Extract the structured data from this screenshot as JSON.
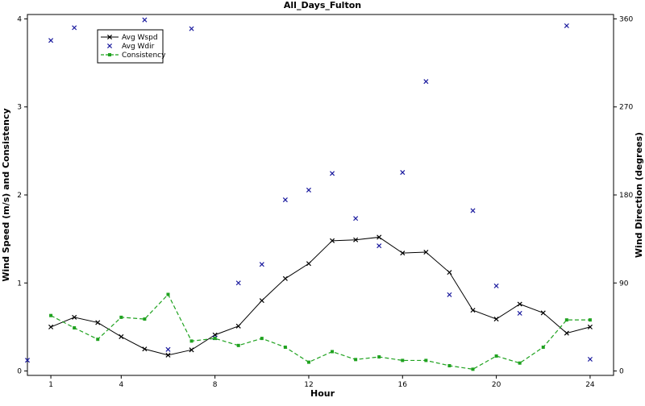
{
  "chart_data": {
    "type": "line",
    "title": "All_Days_Fulton",
    "xlabel": "Hour",
    "ylabel_left": "Wind Speed (m/s) and Consistency",
    "ylabel_right": "Wind Direction (degrees)",
    "x_ticks": [
      1,
      4,
      8,
      12,
      16,
      20,
      24
    ],
    "y_left_ticks": [
      0,
      1,
      2,
      3,
      4
    ],
    "y_right_ticks": [
      0,
      90,
      180,
      270,
      360
    ],
    "xlim": [
      0,
      25
    ],
    "ylim_left": [
      -0.05,
      4.05
    ],
    "ylim_right": [
      -4.5,
      364.5
    ],
    "legend_position": "top-left",
    "series": [
      {
        "name": "Avg Wspd",
        "axis": "left",
        "style": "solid-line-x-marker",
        "color": "#000000",
        "points": [
          [
            1,
            0.5
          ],
          [
            2,
            0.61
          ],
          [
            3,
            0.55
          ],
          [
            4,
            0.39
          ],
          [
            5,
            0.25
          ],
          [
            6,
            0.18
          ],
          [
            7,
            0.24
          ],
          [
            8,
            0.41
          ],
          [
            9,
            0.51
          ],
          [
            10,
            0.8
          ],
          [
            11,
            1.05
          ],
          [
            12,
            1.22
          ],
          [
            13,
            1.48
          ],
          [
            14,
            1.49
          ],
          [
            15,
            1.52
          ],
          [
            16,
            1.34
          ],
          [
            17,
            1.35
          ],
          [
            18,
            1.12
          ],
          [
            19,
            0.69
          ],
          [
            20,
            0.59
          ],
          [
            21,
            0.76
          ],
          [
            22,
            0.66
          ],
          [
            23,
            0.43
          ],
          [
            24,
            0.5
          ]
        ]
      },
      {
        "name": "Avg Wdir",
        "axis": "right",
        "style": "x-marker",
        "color": "#1a1a9e",
        "points": [
          [
            0,
            11
          ],
          [
            1,
            338
          ],
          [
            2,
            351
          ],
          [
            5,
            359
          ],
          [
            6,
            22
          ],
          [
            7,
            350
          ],
          [
            8,
            34
          ],
          [
            9,
            90
          ],
          [
            10,
            109
          ],
          [
            11,
            175
          ],
          [
            12,
            185
          ],
          [
            13,
            202
          ],
          [
            14,
            156
          ],
          [
            15,
            128
          ],
          [
            16,
            203
          ],
          [
            17,
            296
          ],
          [
            18,
            78
          ],
          [
            19,
            164
          ],
          [
            20,
            87
          ],
          [
            21,
            59
          ],
          [
            23,
            353
          ],
          [
            24,
            12
          ]
        ]
      },
      {
        "name": "Consistency",
        "axis": "left",
        "style": "dashed-line-square-marker",
        "color": "#1fa21f",
        "points": [
          [
            1,
            0.63
          ],
          [
            2,
            0.49
          ],
          [
            3,
            0.36
          ],
          [
            4,
            0.61
          ],
          [
            5,
            0.59
          ],
          [
            6,
            0.87
          ],
          [
            7,
            0.34
          ],
          [
            8,
            0.37
          ],
          [
            9,
            0.29
          ],
          [
            10,
            0.37
          ],
          [
            11,
            0.27
          ],
          [
            12,
            0.1
          ],
          [
            13,
            0.22
          ],
          [
            14,
            0.13
          ],
          [
            15,
            0.16
          ],
          [
            16,
            0.12
          ],
          [
            17,
            0.12
          ],
          [
            18,
            0.06
          ],
          [
            19,
            0.02
          ],
          [
            20,
            0.17
          ],
          [
            21,
            0.09
          ],
          [
            22,
            0.27
          ],
          [
            23,
            0.58
          ],
          [
            24,
            0.58
          ]
        ]
      }
    ]
  }
}
